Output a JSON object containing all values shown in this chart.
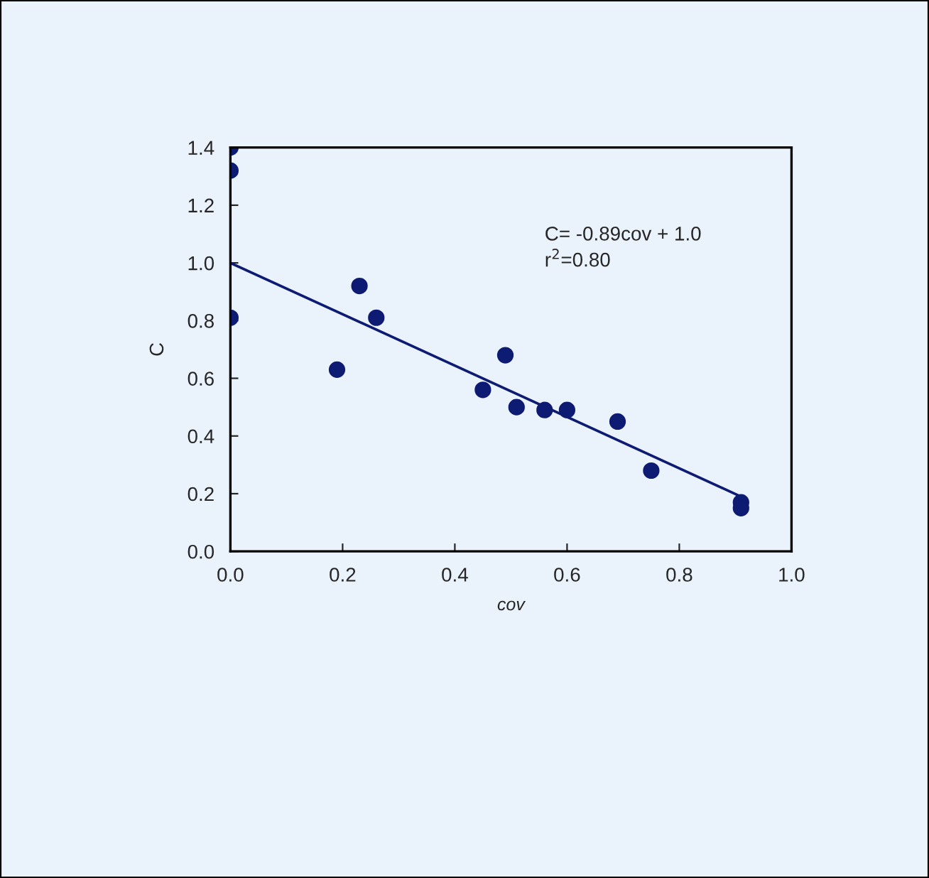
{
  "chart_data": {
    "type": "scatter",
    "xlabel": "cov",
    "ylabel": "C",
    "annotations": [
      "C= -0.89cov + 1.0",
      "r$^{2}$=0.80"
    ],
    "series": [
      {
        "marker": "circle",
        "color": "#0d1b72",
        "x": [
          0,
          0,
          0,
          0.19,
          0.23,
          0.26,
          0.45,
          0.49,
          0.51,
          0.56,
          0.6,
          0.69,
          0.75,
          0.91,
          0.91
        ],
        "values": [
          1.4,
          1.32,
          0.81,
          0.63,
          0.92,
          0.81,
          0.56,
          0.68,
          0.5,
          0.49,
          0.49,
          0.45,
          0.28,
          0.17,
          0.15
        ]
      },
      {
        "type": "line",
        "color": "#0d1b72",
        "x": [
          0,
          0.91
        ],
        "values": [
          1.0,
          0.19
        ]
      }
    ],
    "xlim": [
      0,
      1.0
    ],
    "xticks": [
      {
        "value": 0,
        "label": "0.0"
      },
      0.2,
      0.4,
      0.6,
      0.8,
      {
        "value": 1.0,
        "label": "1.0"
      }
    ],
    "ylim": [
      0,
      1.4
    ],
    "yticks": [
      {
        "value": 0,
        "label": "0.0"
      },
      0.2,
      0.4,
      0.6,
      0.8,
      {
        "value": 1.0,
        "label": "1.0"
      },
      1.2,
      1.4
    ],
    "grid": false
  }
}
